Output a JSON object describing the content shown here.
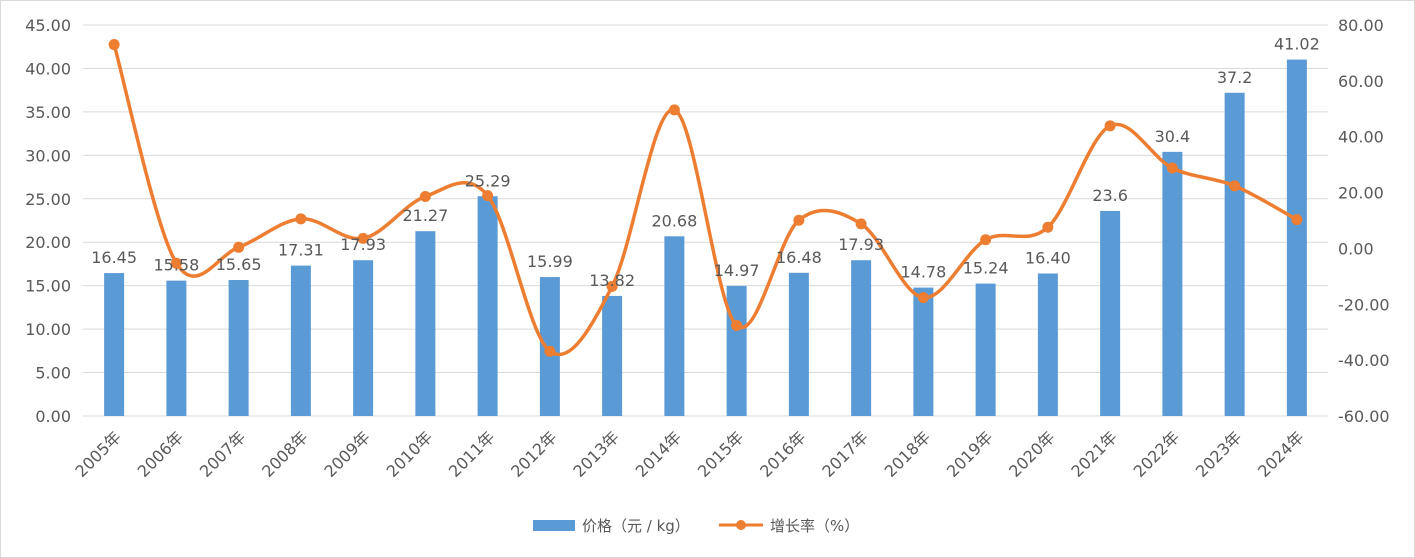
{
  "chart_data": {
    "type": "bar+line",
    "title": "",
    "categories": [
      "2005年",
      "2006年",
      "2007年",
      "2008年",
      "2009年",
      "2010年",
      "2011年",
      "2012年",
      "2013年",
      "2014年",
      "2015年",
      "2016年",
      "2017年",
      "2018年",
      "2019年",
      "2020年",
      "2021年",
      "2022年",
      "2023年",
      "2024年"
    ],
    "series": [
      {
        "name": "价格（元/kg）",
        "type": "bar",
        "axis": "left",
        "color": "#5b9bd5",
        "values": [
          16.45,
          15.58,
          15.65,
          17.31,
          17.93,
          21.27,
          25.29,
          15.99,
          13.82,
          20.68,
          14.97,
          16.48,
          17.93,
          14.78,
          15.24,
          16.4,
          23.6,
          30.4,
          37.2,
          41.02
        ],
        "labels": [
          "16.45",
          "15.58",
          "15.65",
          "17.31",
          "17.93",
          "21.27",
          "25.29",
          "15.99",
          "13.82",
          "20.68",
          "14.97",
          "16.48",
          "17.93",
          "14.78",
          "15.24",
          "16.40",
          "23.6",
          "30.4",
          "37.2",
          "41.02"
        ]
      },
      {
        "name": "增长率（%）",
        "type": "line",
        "axis": "right",
        "color": "#ed7d31",
        "values": [
          73.0,
          -5.3,
          0.4,
          10.6,
          3.6,
          18.6,
          18.9,
          -36.8,
          -13.6,
          49.6,
          -27.6,
          10.1,
          8.8,
          -17.6,
          3.1,
          7.6,
          43.9,
          28.8,
          22.4,
          10.3
        ]
      }
    ],
    "y_left": {
      "min": 0,
      "max": 45,
      "step": 5,
      "ticks": [
        "0.00",
        "5.00",
        "10.00",
        "15.00",
        "20.00",
        "25.00",
        "30.00",
        "35.00",
        "40.00",
        "45.00"
      ]
    },
    "y_right": {
      "min": -60,
      "max": 80,
      "step": 20,
      "ticks": [
        "-60.00",
        "-40.00",
        "-20.00",
        "0.00",
        "20.00",
        "40.00",
        "60.00",
        "80.00"
      ]
    },
    "grid": true,
    "legend": "bottom",
    "legend_labels": [
      "价格（元 / kg）",
      "增长率（%）"
    ]
  }
}
